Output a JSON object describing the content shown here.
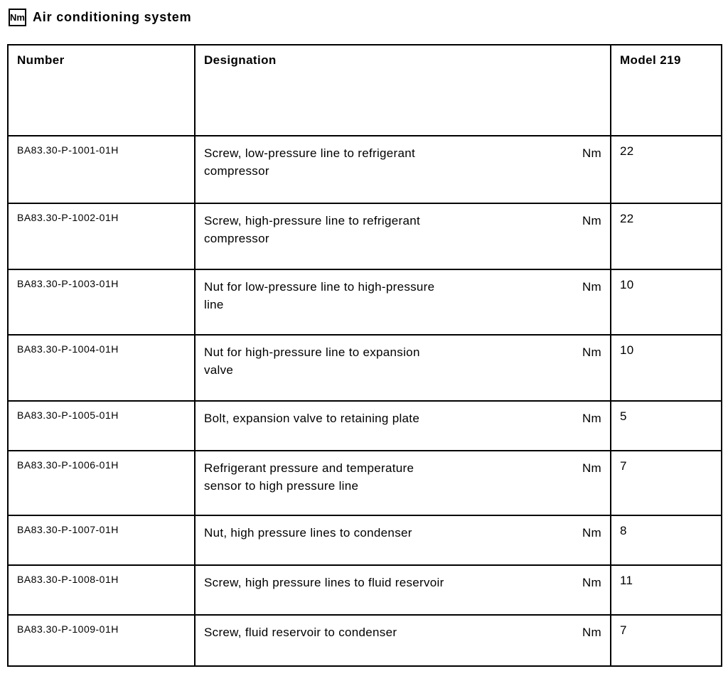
{
  "header": {
    "icon_label": "Nm",
    "title": "Air conditioning system"
  },
  "table": {
    "columns": [
      "Number",
      "Designation",
      "Model 219"
    ],
    "rows": [
      {
        "number": "BA83.30-P-1001-01H",
        "designation": "Screw, low-pressure line to refrigerant compressor",
        "lines": [
          "Screw, low-pressure line to refrigerant",
          "compressor"
        ],
        "unit": "Nm",
        "value": "22"
      },
      {
        "number": "BA83.30-P-1002-01H",
        "designation": "Screw, high-pressure line to refrigerant compressor",
        "lines": [
          "Screw, high-pressure line to refrigerant",
          "compressor"
        ],
        "unit": "Nm",
        "value": "22"
      },
      {
        "number": "BA83.30-P-1003-01H",
        "designation": "Nut for low-pressure line to high-pressure line",
        "lines": [
          "Nut for low-pressure line to high-pressure",
          "line"
        ],
        "unit": "Nm",
        "value": "10"
      },
      {
        "number": "BA83.30-P-1004-01H",
        "designation": "Nut for high-pressure line to expansion valve",
        "lines": [
          "Nut for high-pressure line to expansion",
          "valve"
        ],
        "unit": "Nm",
        "value": "10"
      },
      {
        "number": "BA83.30-P-1005-01H",
        "designation": "Bolt, expansion valve to retaining plate",
        "lines": [
          "Bolt, expansion valve to retaining plate"
        ],
        "unit": "Nm",
        "value": "5"
      },
      {
        "number": "BA83.30-P-1006-01H",
        "designation": "Refrigerant pressure and temperature sensor to high pressure line",
        "lines": [
          "Refrigerant pressure and temperature",
          "sensor to high pressure line"
        ],
        "unit": "Nm",
        "value": "7"
      },
      {
        "number": "BA83.30-P-1007-01H",
        "designation": "Nut, high pressure lines to condenser",
        "lines": [
          "Nut, high pressure lines to condenser"
        ],
        "unit": "Nm",
        "value": "8"
      },
      {
        "number": "BA83.30-P-1008-01H",
        "designation": "Screw, high pressure lines to fluid reservoir",
        "lines": [
          "Screw, high pressure lines to fluid reservoir"
        ],
        "unit": "Nm",
        "value": "11"
      },
      {
        "number": "BA83.30-P-1009-01H",
        "designation": "Screw, fluid reservoir to condenser",
        "lines": [
          "Screw, fluid reservoir to condenser"
        ],
        "unit": "Nm",
        "value": "7"
      }
    ]
  }
}
